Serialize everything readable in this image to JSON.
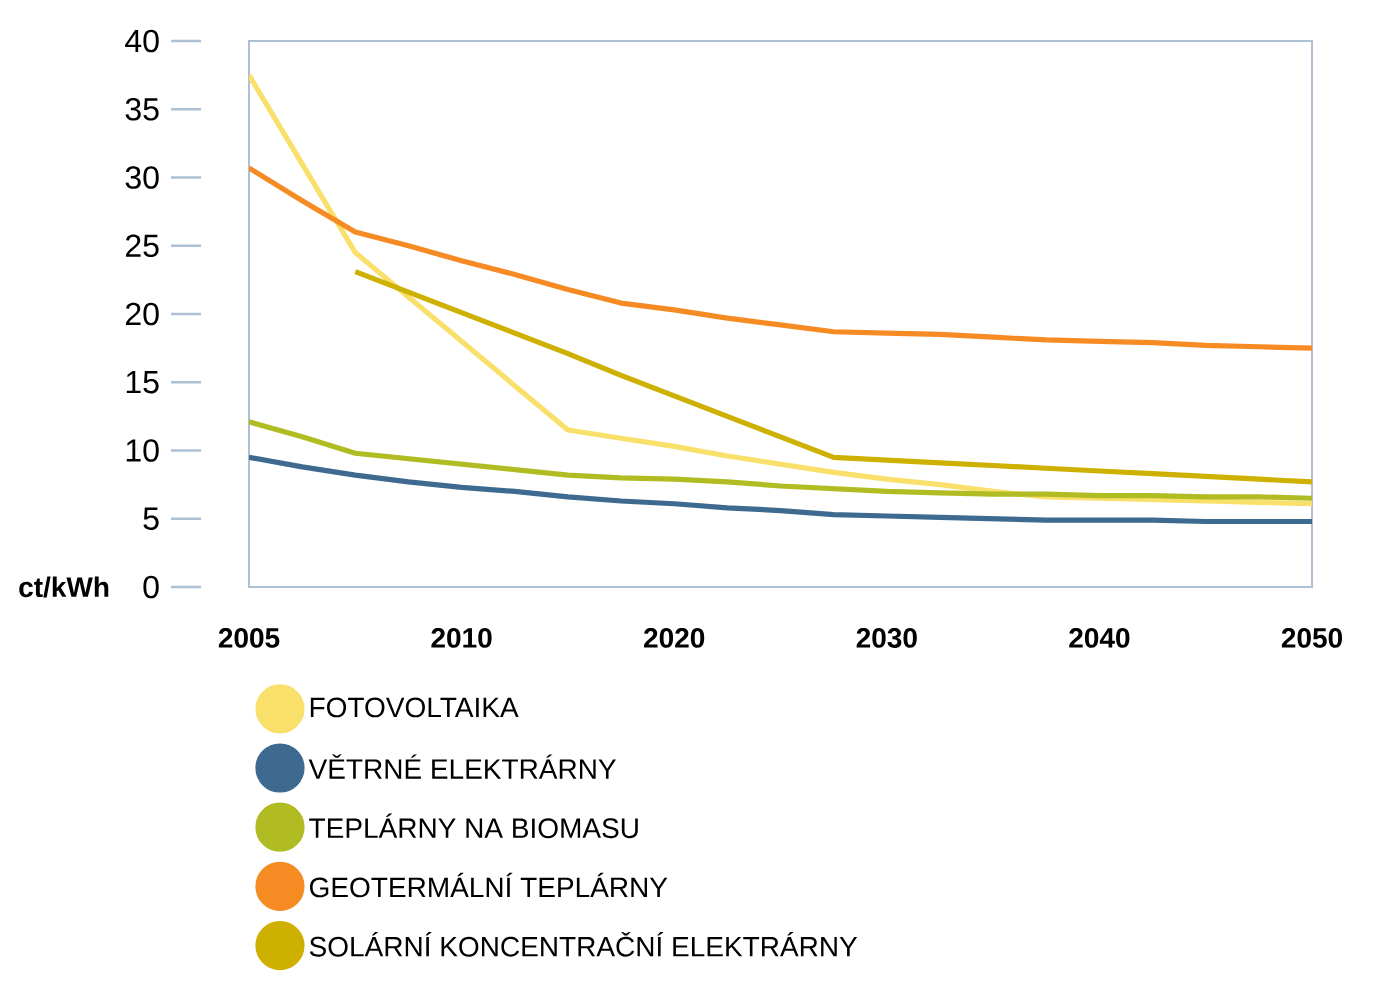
{
  "chart_data": {
    "type": "line",
    "ylabel": "ct/kWh",
    "ylim": [
      0,
      40
    ],
    "categories": [
      "2005",
      null,
      null,
      null,
      "2010",
      null,
      null,
      null,
      "2020",
      null,
      null,
      null,
      "2030",
      null,
      null,
      null,
      "2040",
      null,
      null,
      null,
      "2050"
    ],
    "yticks": [
      0,
      5,
      10,
      15,
      20,
      25,
      30,
      35,
      40
    ],
    "legend": "bottom",
    "marker": "none",
    "line_style": "solid",
    "series": [
      {
        "name": "FOTOVOLTAIKA",
        "color": "#f9e06a",
        "values": [
          37.5,
          31,
          24.5,
          21.25,
          18,
          14.75,
          11.5,
          10.9,
          10.3,
          9.6,
          9.0,
          8.4,
          7.9,
          7.5,
          7.0,
          6.6,
          6.5,
          6.4,
          6.3,
          6.2,
          6.1
        ]
      },
      {
        "name": "VĚTRNÉ ELEKTRÁRNY",
        "color": "#3d6a8e",
        "values": [
          9.5,
          8.8,
          8.2,
          7.7,
          7.3,
          7.0,
          6.6,
          6.3,
          6.1,
          5.8,
          5.6,
          5.3,
          5.2,
          5.1,
          5.0,
          4.9,
          4.9,
          4.9,
          4.8,
          4.8,
          4.8
        ]
      },
      {
        "name": "TEPLÁRNY NA BIOMASU",
        "color": "#b0bc22",
        "values": [
          12.1,
          11.0,
          9.8,
          9.4,
          9.0,
          8.6,
          8.2,
          8.0,
          7.9,
          7.7,
          7.4,
          7.2,
          7.0,
          6.9,
          6.8,
          6.8,
          6.7,
          6.7,
          6.6,
          6.6,
          6.5
        ]
      },
      {
        "name": "GEOTERMÁLNÍ TEPLÁRNY",
        "color": "#f68b24",
        "values": [
          30.7,
          28.3,
          26.0,
          25.0,
          23.9,
          22.9,
          21.8,
          20.8,
          20.3,
          19.7,
          19.2,
          18.7,
          18.6,
          18.5,
          18.3,
          18.1,
          18.0,
          17.9,
          17.7,
          17.6,
          17.5
        ]
      },
      {
        "name": "SOLÁRNÍ KONCENTRAČNÍ ELEKTRÁRNY",
        "color": "#cdb000",
        "values": [
          null,
          null,
          23.1,
          21.6,
          20.1,
          18.6,
          17.1,
          15.5,
          14.0,
          12.5,
          11.0,
          9.5,
          9.3,
          9.1,
          8.9,
          8.7,
          8.5,
          8.3,
          8.1,
          7.9,
          7.7
        ]
      }
    ]
  }
}
